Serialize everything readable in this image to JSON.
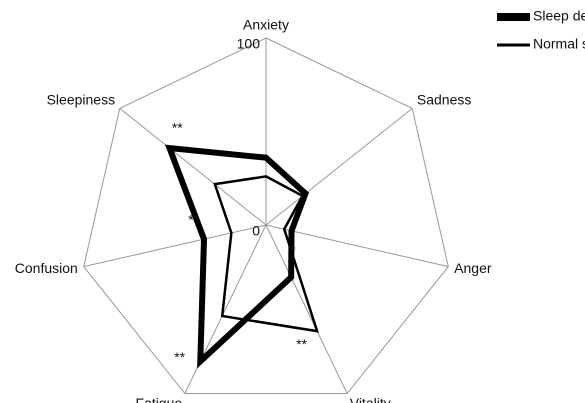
{
  "chart_data": {
    "type": "radar",
    "categories": [
      "Anxiety",
      "Sadness",
      "Anger",
      "Vitality",
      "Fatigue",
      "Confusion",
      "Sleepiness"
    ],
    "series": [
      {
        "name": "Sleep deprivation",
        "color": "#000000",
        "values": [
          36,
          27,
          14,
          31,
          81,
          34,
          66
        ]
      },
      {
        "name": "Normal sleep",
        "color": "#000000",
        "values": [
          26,
          25,
          10,
          63,
          54,
          19,
          35
        ]
      }
    ],
    "annotations": [
      null,
      null,
      "*",
      "**",
      "**",
      "**",
      "**"
    ],
    "rlim": [
      0,
      100
    ],
    "rticks": [
      0,
      100
    ],
    "grid": true,
    "legend": "top-right"
  }
}
